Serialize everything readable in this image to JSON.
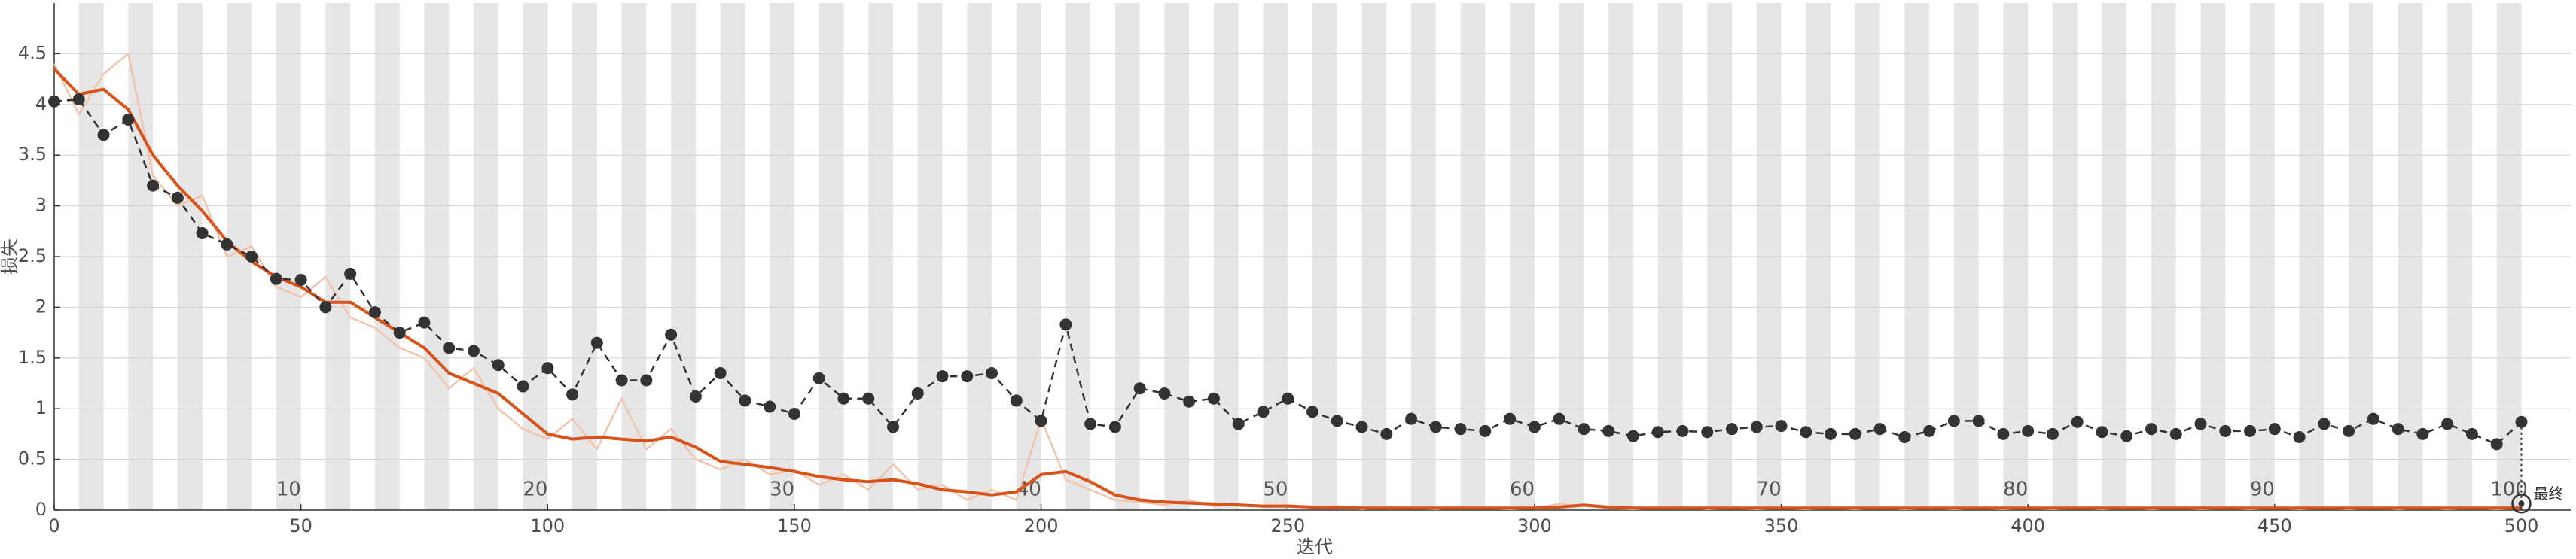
{
  "chart_data": {
    "type": "line",
    "xlabel": "迭代",
    "ylabel": "损失",
    "xlim": [
      0,
      510
    ],
    "ylim": [
      0,
      5
    ],
    "xticks": [
      0,
      50,
      100,
      150,
      200,
      250,
      300,
      350,
      400,
      450,
      500
    ],
    "yticks": [
      0,
      0.5,
      1,
      1.5,
      2,
      2.5,
      3,
      3.5,
      4,
      4.5
    ],
    "grid": true,
    "x": [
      0,
      5,
      10,
      15,
      20,
      25,
      30,
      35,
      40,
      45,
      50,
      55,
      60,
      65,
      70,
      75,
      80,
      85,
      90,
      95,
      100,
      105,
      110,
      115,
      120,
      125,
      130,
      135,
      140,
      145,
      150,
      155,
      160,
      165,
      170,
      175,
      180,
      185,
      190,
      195,
      200,
      205,
      210,
      215,
      220,
      225,
      230,
      235,
      240,
      245,
      250,
      255,
      260,
      265,
      270,
      275,
      280,
      285,
      290,
      295,
      300,
      305,
      310,
      315,
      320,
      325,
      330,
      335,
      340,
      345,
      350,
      355,
      360,
      365,
      370,
      375,
      380,
      385,
      390,
      395,
      400,
      405,
      410,
      415,
      420,
      425,
      430,
      435,
      440,
      445,
      450,
      455,
      460,
      465,
      470,
      475,
      480,
      485,
      490,
      495,
      500
    ],
    "series": [
      {
        "color": "#f2c4ae",
        "values": [
          4.4,
          3.9,
          4.3,
          4.5,
          3.3,
          3.0,
          3.1,
          2.5,
          2.6,
          2.2,
          2.1,
          2.3,
          1.9,
          1.8,
          1.6,
          1.5,
          1.2,
          1.4,
          1.0,
          0.8,
          0.7,
          0.9,
          0.6,
          1.1,
          0.6,
          0.8,
          0.5,
          0.4,
          0.5,
          0.35,
          0.4,
          0.25,
          0.35,
          0.2,
          0.45,
          0.2,
          0.25,
          0.1,
          0.2,
          0.1,
          0.9,
          0.3,
          0.2,
          0.1,
          0.08,
          0.05,
          0.1,
          0.04,
          0.06,
          0.03,
          0.05,
          0.02,
          0.04,
          0.01,
          0.03,
          0.02,
          0.01,
          0.03,
          0.02,
          0.01,
          0.02,
          0.06,
          0.04,
          0.02,
          0.01,
          0.02,
          0.03,
          0.01,
          0.02,
          0.01,
          0.02,
          0.01,
          0.02,
          0.01,
          0.02,
          0.01,
          0.02,
          0.01,
          0.02,
          0.01,
          0.02,
          0.01,
          0.02,
          0.01,
          0.02,
          0.01,
          0.02,
          0.01,
          0.02,
          0.01,
          0.02,
          0.01,
          0.02,
          0.01,
          0.02,
          0.01,
          0.02,
          0.01,
          0.02,
          0.01,
          0.02
        ]
      },
      {
        "color": "#d95319",
        "values": [
          4.35,
          4.1,
          4.15,
          3.95,
          3.5,
          3.2,
          2.95,
          2.65,
          2.45,
          2.3,
          2.2,
          2.05,
          2.05,
          1.9,
          1.75,
          1.6,
          1.35,
          1.25,
          1.15,
          0.95,
          0.75,
          0.7,
          0.72,
          0.7,
          0.68,
          0.72,
          0.62,
          0.48,
          0.45,
          0.42,
          0.38,
          0.33,
          0.3,
          0.28,
          0.3,
          0.26,
          0.2,
          0.18,
          0.15,
          0.18,
          0.35,
          0.38,
          0.28,
          0.15,
          0.1,
          0.08,
          0.07,
          0.06,
          0.05,
          0.04,
          0.04,
          0.03,
          0.03,
          0.02,
          0.02,
          0.02,
          0.02,
          0.02,
          0.02,
          0.02,
          0.02,
          0.03,
          0.05,
          0.03,
          0.02,
          0.02,
          0.02,
          0.02,
          0.02,
          0.02,
          0.02,
          0.02,
          0.02,
          0.02,
          0.02,
          0.02,
          0.02,
          0.02,
          0.02,
          0.02,
          0.02,
          0.02,
          0.02,
          0.02,
          0.02,
          0.02,
          0.02,
          0.02,
          0.02,
          0.02,
          0.02,
          0.02,
          0.02,
          0.02,
          0.02,
          0.02,
          0.02,
          0.02,
          0.02,
          0.02,
          0.02
        ]
      },
      {
        "color": "#333333",
        "dashed": true,
        "markers": true,
        "values": [
          4.03,
          4.05,
          3.7,
          3.85,
          3.2,
          3.08,
          2.73,
          2.62,
          2.5,
          2.28,
          2.27,
          2.0,
          2.33,
          1.95,
          1.75,
          1.85,
          1.6,
          1.57,
          1.43,
          1.22,
          1.4,
          1.14,
          1.65,
          1.28,
          1.28,
          1.73,
          1.12,
          1.35,
          1.08,
          1.02,
          0.95,
          1.3,
          1.1,
          1.1,
          0.82,
          1.15,
          1.32,
          1.32,
          1.35,
          1.08,
          0.88,
          1.83,
          0.85,
          0.82,
          1.2,
          1.15,
          1.07,
          1.1,
          0.85,
          0.97,
          1.1,
          0.97,
          0.88,
          0.82,
          0.75,
          0.9,
          0.82,
          0.8,
          0.78,
          0.9,
          0.82,
          0.9,
          0.8,
          0.78,
          0.73,
          0.77,
          0.78,
          0.77,
          0.8,
          0.82,
          0.83,
          0.77,
          0.75,
          0.75,
          0.8,
          0.72,
          0.78,
          0.88,
          0.88,
          0.75,
          0.78,
          0.75,
          0.87,
          0.77,
          0.73,
          0.8,
          0.75,
          0.85,
          0.78,
          0.78,
          0.8,
          0.72,
          0.85,
          0.78,
          0.9,
          0.8,
          0.75,
          0.85,
          0.75,
          0.65,
          0.87
        ]
      }
    ],
    "epoch_labels": [
      10,
      20,
      30,
      40,
      50,
      60,
      70,
      80,
      90,
      100
    ],
    "final_label": "最终"
  }
}
